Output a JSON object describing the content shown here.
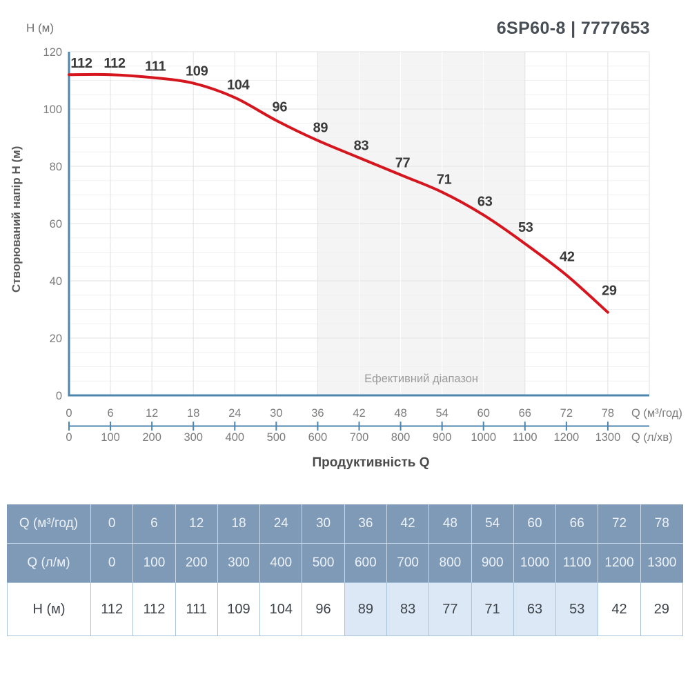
{
  "header": {
    "title": "6SP60-8 | 7777653"
  },
  "chart": {
    "y_unit_label": "H (м)",
    "y_axis_title": "Створюваний напір H (м)",
    "x_axis_title": "Продуктивність Q",
    "x_unit_primary": "Q (м³/год)",
    "x_unit_secondary": "Q (л/хв)",
    "effective_range_label": "Ефективний діапазон"
  },
  "chart_data": {
    "type": "line",
    "title": "6SP60-8 | 7777653",
    "x_m3_per_hour": [
      0,
      6,
      12,
      18,
      24,
      30,
      36,
      42,
      48,
      54,
      60,
      66,
      72,
      78
    ],
    "x_l_per_min": [
      0,
      100,
      200,
      300,
      400,
      500,
      600,
      700,
      800,
      900,
      1000,
      1100,
      1200,
      1300
    ],
    "series": [
      {
        "name": "H (м)",
        "values": [
          112,
          112,
          111,
          109,
          104,
          96,
          89,
          83,
          77,
          71,
          63,
          53,
          42,
          29
        ]
      }
    ],
    "xlabel": "Продуктивність Q",
    "ylabel": "Створюваний напір H (м)",
    "xlim": [
      0,
      84
    ],
    "ylim": [
      0,
      120
    ],
    "y_ticks": [
      0,
      20,
      40,
      60,
      80,
      100,
      120
    ],
    "grid": true,
    "legend": "none",
    "effective_range_x": [
      36,
      66
    ]
  },
  "table": {
    "rows": [
      {
        "label": "Q (м³/год)",
        "type": "header",
        "values": [
          "0",
          "6",
          "12",
          "18",
          "24",
          "30",
          "36",
          "42",
          "48",
          "54",
          "60",
          "66",
          "72",
          "78"
        ]
      },
      {
        "label": "Q (л/м)",
        "type": "header",
        "values": [
          "0",
          "100",
          "200",
          "300",
          "400",
          "500",
          "600",
          "700",
          "800",
          "900",
          "1000",
          "1100",
          "1200",
          "1300"
        ]
      },
      {
        "label": "H (м)",
        "type": "body",
        "values": [
          "112",
          "112",
          "111",
          "109",
          "104",
          "96",
          "89",
          "83",
          "77",
          "71",
          "63",
          "53",
          "42",
          "29"
        ]
      }
    ],
    "highlight_column_start": 6,
    "highlight_column_end": 11
  },
  "colors": {
    "curve_red": "#d6161f",
    "axis_blue": "#4d85ac",
    "grid_major": "#e2e2e2",
    "grid_minor": "#f0f0f0",
    "tick_text": "#7b7b7b",
    "point_label_text": "#3a3a3a",
    "effective_range_bg": "#f4f4f4",
    "effective_range_text": "#9b9b9b",
    "table_header_bg": "#7f9ab7",
    "highlight_cell_bg": "#dce8f5",
    "title_text": "#474e55"
  }
}
